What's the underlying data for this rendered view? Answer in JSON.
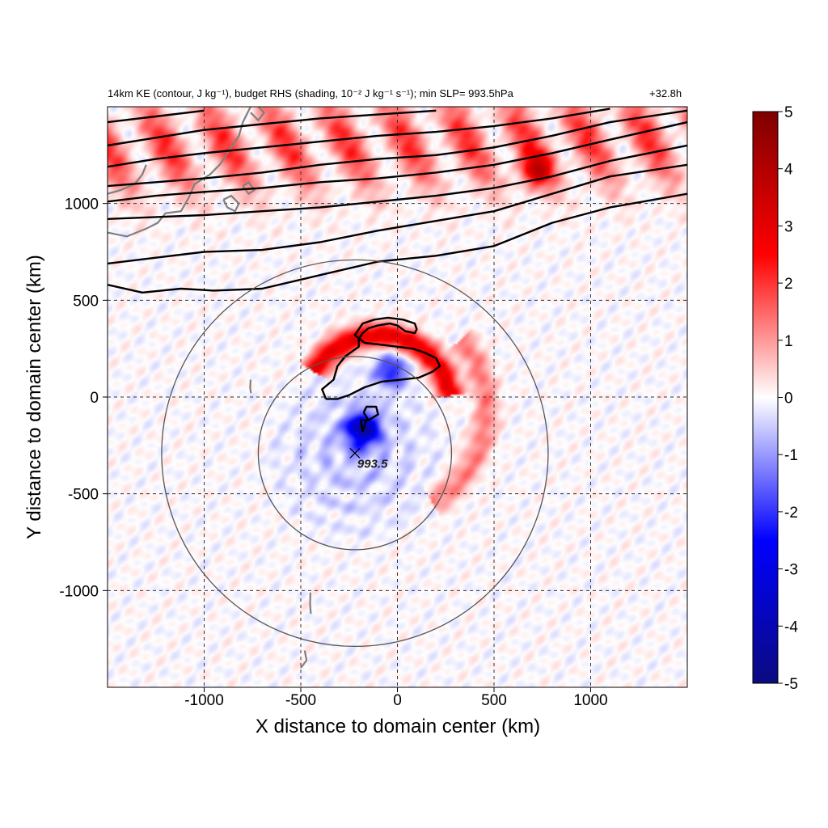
{
  "title_left": "14km KE (contour, J kg⁻¹), budget RHS (shading, 10⁻² J kg⁻¹ s⁻¹); min SLP= 993.5hPa",
  "title_right": "+32.8h",
  "chart_data": {
    "type": "heatmap",
    "title": "14km KE (contour, J kg⁻¹), budget RHS (shading, 10⁻² J kg⁻¹ s⁻¹); min SLP= 993.5hPa",
    "subtitle": "+32.8h",
    "xlabel": "X distance to domain center (km)",
    "ylabel": "Y distance to domain center (km)",
    "xlim": [
      -1500,
      1500
    ],
    "ylim": [
      -1500,
      1500
    ],
    "xticks": [
      -1000,
      -500,
      0,
      500,
      1000
    ],
    "yticks": [
      -1000,
      -500,
      0,
      500,
      1000
    ],
    "xtick_labels": [
      "-1000",
      "-500",
      "0",
      "500",
      "1000"
    ],
    "ytick_labels": [
      "-1000",
      "-500",
      "0",
      "500",
      "1000"
    ],
    "grid": "dashed",
    "colorbar": {
      "min": -5,
      "max": 5,
      "ticks": [
        5,
        4,
        3,
        2,
        1,
        0,
        -1,
        -2,
        -3,
        -4,
        -5
      ],
      "tick_labels": [
        "5",
        "4",
        "3",
        "2",
        "1",
        "0",
        "-1",
        "-2",
        "-3",
        "-4",
        "-5"
      ],
      "colors": [
        "#0b0b80",
        "#0000ff",
        "#ffffff",
        "#ff0000",
        "#7f0000"
      ]
    },
    "storm_center": {
      "x": -220,
      "y": -290,
      "label": "993.5"
    },
    "range_rings_km": [
      500,
      1000
    ],
    "shading_features": [
      {
        "type": "band",
        "sign": "positive",
        "x_start": -1500,
        "y_start": 1130,
        "x_end": 1500,
        "y_end": 1500,
        "amplitude": 1.8
      },
      {
        "type": "arc",
        "sign": "positive",
        "center_x": -100,
        "center_y": -60,
        "radius": 380,
        "from_deg": 10,
        "to_deg": 150,
        "amplitude": 3.0
      },
      {
        "type": "arc",
        "sign": "positive",
        "center_x": -100,
        "center_y": -60,
        "radius": 560,
        "from_deg": -60,
        "to_deg": 40,
        "amplitude": 1.3
      },
      {
        "type": "blob",
        "sign": "negative",
        "x": -180,
        "y": -170,
        "amplitude": 3.8
      },
      {
        "type": "blob",
        "sign": "negative",
        "x": -30,
        "y": 140,
        "amplitude": 2.2
      },
      {
        "type": "blob",
        "sign": "positive",
        "x": 720,
        "y": 1170,
        "amplitude": 2.5
      }
    ],
    "ke_contours_km": [
      [
        [
          -1500,
          580
        ],
        [
          -1320,
          540
        ],
        [
          -1120,
          560
        ],
        [
          -950,
          550
        ],
        [
          -700,
          560
        ],
        [
          -400,
          630
        ],
        [
          -100,
          700
        ],
        [
          200,
          730
        ],
        [
          500,
          780
        ],
        [
          800,
          900
        ],
        [
          1100,
          980
        ],
        [
          1500,
          1050
        ]
      ],
      [
        [
          -1500,
          690
        ],
        [
          -1250,
          720
        ],
        [
          -1000,
          750
        ],
        [
          -700,
          760
        ],
        [
          -400,
          800
        ],
        [
          -100,
          860
        ],
        [
          200,
          910
        ],
        [
          500,
          960
        ],
        [
          800,
          1050
        ],
        [
          1100,
          1140
        ],
        [
          1500,
          1200
        ]
      ],
      [
        [
          -1500,
          920
        ],
        [
          -1250,
          930
        ],
        [
          -1000,
          940
        ],
        [
          -700,
          960
        ],
        [
          -400,
          980
        ],
        [
          -100,
          1010
        ],
        [
          200,
          1040
        ],
        [
          500,
          1080
        ],
        [
          800,
          1140
        ],
        [
          1100,
          1220
        ],
        [
          1500,
          1300
        ]
      ],
      [
        [
          -1500,
          1010
        ],
        [
          -1250,
          1040
        ],
        [
          -1000,
          1060
        ],
        [
          -700,
          1080
        ],
        [
          -400,
          1110
        ],
        [
          -100,
          1130
        ],
        [
          200,
          1160
        ],
        [
          500,
          1200
        ],
        [
          800,
          1260
        ],
        [
          1100,
          1330
        ],
        [
          1500,
          1420
        ]
      ],
      [
        [
          -1500,
          1090
        ],
        [
          -1250,
          1110
        ],
        [
          -1000,
          1130
        ],
        [
          -700,
          1160
        ],
        [
          -400,
          1200
        ],
        [
          -100,
          1230
        ],
        [
          200,
          1250
        ],
        [
          500,
          1290
        ],
        [
          800,
          1350
        ],
        [
          1100,
          1420
        ],
        [
          1500,
          1480
        ]
      ],
      [
        [
          -1500,
          1190
        ],
        [
          -1250,
          1230
        ],
        [
          -1000,
          1260
        ],
        [
          -700,
          1290
        ],
        [
          -400,
          1320
        ],
        [
          -100,
          1350
        ],
        [
          200,
          1370
        ],
        [
          500,
          1400
        ],
        [
          800,
          1440
        ],
        [
          1100,
          1490
        ]
      ],
      [
        [
          -1500,
          1300
        ],
        [
          -1250,
          1340
        ],
        [
          -1000,
          1380
        ],
        [
          -700,
          1410
        ],
        [
          -400,
          1440
        ],
        [
          -100,
          1460
        ],
        [
          200,
          1480
        ]
      ],
      [
        [
          -1500,
          1420
        ],
        [
          -1250,
          1450
        ],
        [
          -1000,
          1480
        ]
      ],
      [
        [
          -370,
          -10
        ],
        [
          -390,
          40
        ],
        [
          -330,
          90
        ],
        [
          -310,
          160
        ],
        [
          -270,
          210
        ],
        [
          -200,
          260
        ],
        [
          -200,
          300
        ],
        [
          -180,
          330
        ],
        [
          -150,
          355
        ],
        [
          -100,
          370
        ],
        [
          -40,
          380
        ],
        [
          0,
          370
        ],
        [
          40,
          340
        ],
        [
          90,
          330
        ],
        [
          100,
          350
        ],
        [
          90,
          380
        ],
        [
          30,
          400
        ],
        [
          -50,
          410
        ],
        [
          -120,
          400
        ],
        [
          -180,
          380
        ],
        [
          -220,
          320
        ],
        [
          -170,
          280
        ],
        [
          -80,
          270
        ],
        [
          0,
          260
        ],
        [
          80,
          250
        ],
        [
          140,
          230
        ],
        [
          200,
          200
        ],
        [
          220,
          160
        ],
        [
          180,
          130
        ],
        [
          110,
          100
        ],
        [
          20,
          90
        ],
        [
          -80,
          80
        ],
        [
          -170,
          50
        ],
        [
          -250,
          10
        ],
        [
          -310,
          -10
        ],
        [
          -370,
          -10
        ]
      ],
      [
        [
          -175,
          -80
        ],
        [
          -160,
          -50
        ],
        [
          -110,
          -50
        ],
        [
          -100,
          -90
        ],
        [
          -150,
          -120
        ],
        [
          -175,
          -80
        ]
      ],
      [
        [
          -180,
          -180
        ],
        [
          -190,
          -120
        ],
        [
          -160,
          -120
        ],
        [
          -175,
          -160
        ],
        [
          -180,
          -180
        ]
      ]
    ],
    "coastlines_km": [
      [
        [
          -1500,
          850
        ],
        [
          -1400,
          830
        ],
        [
          -1300,
          870
        ],
        [
          -1240,
          900
        ],
        [
          -1200,
          950
        ],
        [
          -1120,
          960
        ],
        [
          -1080,
          1030
        ],
        [
          -1050,
          1100
        ],
        [
          -970,
          1150
        ],
        [
          -920,
          1200
        ],
        [
          -860,
          1290
        ],
        [
          -820,
          1350
        ],
        [
          -800,
          1420
        ],
        [
          -760,
          1500
        ]
      ],
      [
        [
          -1500,
          1050
        ],
        [
          -1430,
          1070
        ],
        [
          -1360,
          1100
        ],
        [
          -1320,
          1150
        ],
        [
          -1300,
          1200
        ]
      ],
      [
        [
          -900,
          1020
        ],
        [
          -880,
          980
        ],
        [
          -840,
          960
        ],
        [
          -820,
          1000
        ],
        [
          -860,
          1040
        ],
        [
          -900,
          1020
        ]
      ],
      [
        [
          -800,
          1090
        ],
        [
          -770,
          1050
        ],
        [
          -740,
          1070
        ],
        [
          -770,
          1110
        ],
        [
          -800,
          1090
        ]
      ],
      [
        [
          -760,
          1470
        ],
        [
          -720,
          1430
        ],
        [
          -690,
          1470
        ],
        [
          -720,
          1500
        ]
      ],
      [
        [
          -760,
          90
        ],
        [
          -762,
          50
        ],
        [
          -758,
          20
        ]
      ],
      [
        [
          -450,
          -1010
        ],
        [
          -452,
          -1070
        ],
        [
          -448,
          -1120
        ]
      ],
      [
        [
          -480,
          -1310
        ],
        [
          -470,
          -1360
        ],
        [
          -500,
          -1400
        ]
      ]
    ]
  }
}
